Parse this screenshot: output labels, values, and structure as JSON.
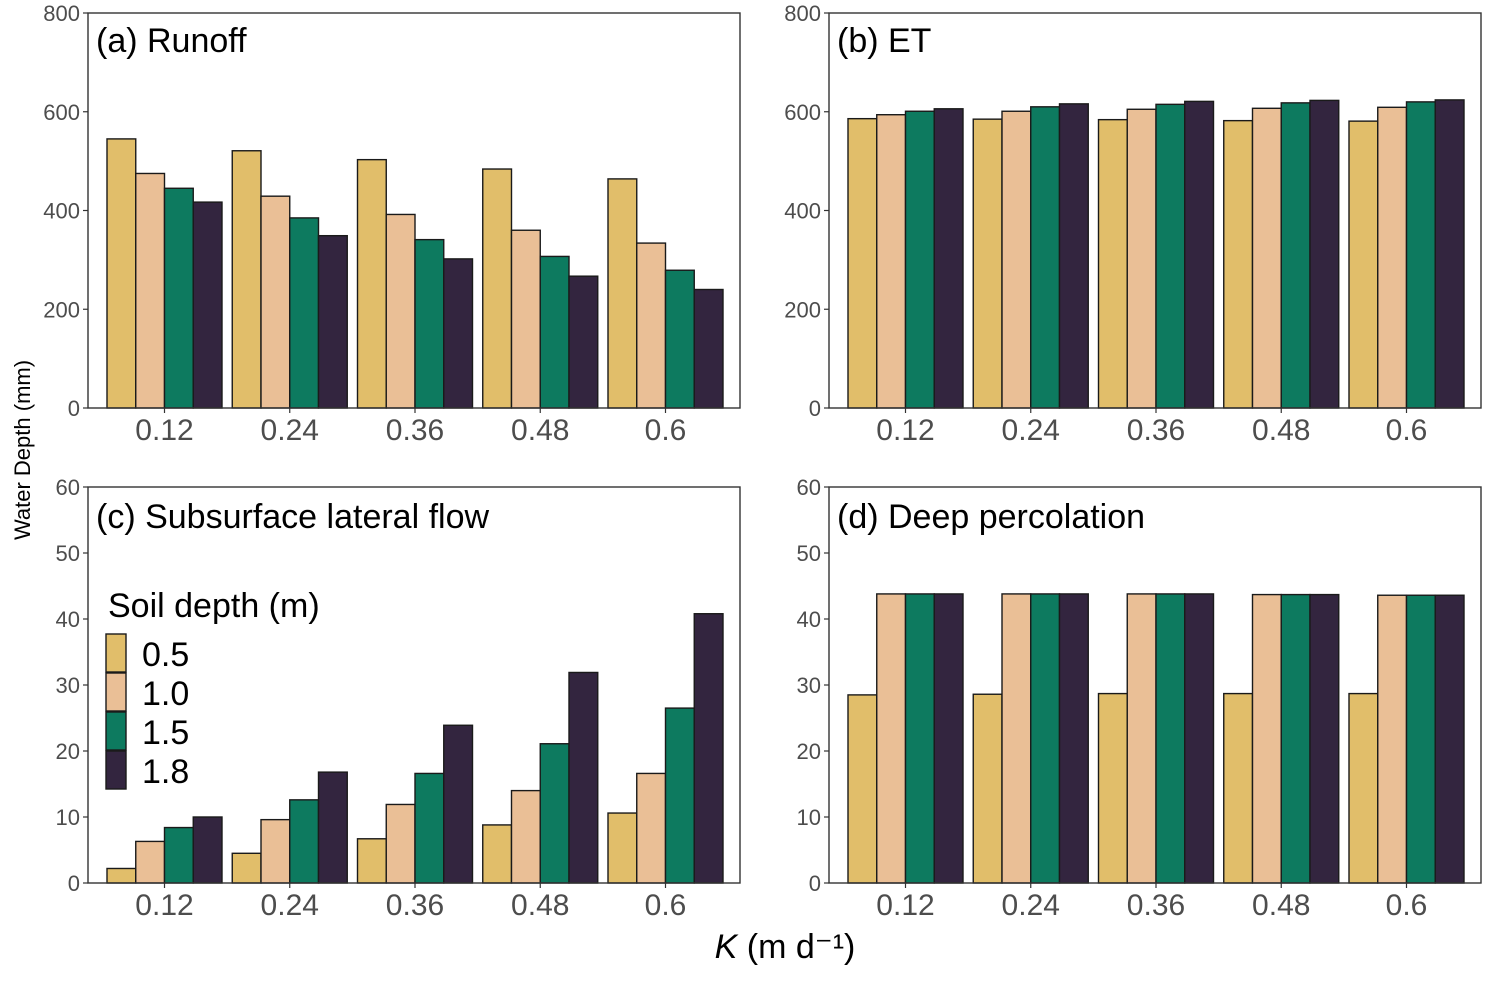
{
  "chart_data": [
    {
      "type": "bar",
      "title": "(a) Runoff",
      "categories": [
        "0.12",
        "0.24",
        "0.36",
        "0.48",
        "0.6"
      ],
      "ylim": [
        0,
        800
      ],
      "yticks": [
        "0",
        "200",
        "400",
        "600",
        "800"
      ],
      "series": [
        {
          "name": "0.5",
          "values": [
            545,
            521,
            503,
            484,
            464
          ]
        },
        {
          "name": "1.0",
          "values": [
            475,
            429,
            392,
            360,
            334
          ]
        },
        {
          "name": "1.5",
          "values": [
            445,
            385,
            341,
            307,
            279
          ]
        },
        {
          "name": "1.8",
          "values": [
            417,
            349,
            302,
            267,
            240
          ]
        }
      ]
    },
    {
      "type": "bar",
      "title": "(b) ET",
      "categories": [
        "0.12",
        "0.24",
        "0.36",
        "0.48",
        "0.6"
      ],
      "ylim": [
        0,
        800
      ],
      "yticks": [
        "0",
        "200",
        "400",
        "600",
        "800"
      ],
      "series": [
        {
          "name": "0.5",
          "values": [
            586,
            585,
            584,
            582,
            581
          ]
        },
        {
          "name": "1.0",
          "values": [
            594,
            601,
            605,
            607,
            609
          ]
        },
        {
          "name": "1.5",
          "values": [
            601,
            610,
            615,
            618,
            620
          ]
        },
        {
          "name": "1.8",
          "values": [
            606,
            616,
            621,
            623,
            624
          ]
        }
      ]
    },
    {
      "type": "bar",
      "title": "(c) Subsurface lateral flow",
      "categories": [
        "0.12",
        "0.24",
        "0.36",
        "0.48",
        "0.6"
      ],
      "ylim": [
        0,
        60
      ],
      "yticks": [
        "0",
        "10",
        "20",
        "30",
        "40",
        "50",
        "60"
      ],
      "series": [
        {
          "name": "0.5",
          "values": [
            2.2,
            4.5,
            6.7,
            8.8,
            10.6
          ]
        },
        {
          "name": "1.0",
          "values": [
            6.3,
            9.6,
            11.9,
            14.0,
            16.6
          ]
        },
        {
          "name": "1.5",
          "values": [
            8.4,
            12.6,
            16.6,
            21.1,
            26.5
          ]
        },
        {
          "name": "1.8",
          "values": [
            10.0,
            16.8,
            23.9,
            31.9,
            40.8
          ]
        }
      ]
    },
    {
      "type": "bar",
      "title": "(d) Deep percolation",
      "categories": [
        "0.12",
        "0.24",
        "0.36",
        "0.48",
        "0.6"
      ],
      "ylim": [
        0,
        60
      ],
      "yticks": [
        "0",
        "10",
        "20",
        "30",
        "40",
        "50",
        "60"
      ],
      "series": [
        {
          "name": "0.5",
          "values": [
            28.5,
            28.6,
            28.7,
            28.7,
            28.7
          ]
        },
        {
          "name": "1.0",
          "values": [
            43.8,
            43.8,
            43.8,
            43.7,
            43.6
          ]
        },
        {
          "name": "1.5",
          "values": [
            43.8,
            43.8,
            43.8,
            43.7,
            43.6
          ]
        },
        {
          "name": "1.8",
          "values": [
            43.8,
            43.8,
            43.8,
            43.7,
            43.6
          ]
        }
      ]
    }
  ],
  "legend": {
    "title": "Soil depth (m)",
    "items": [
      "0.5",
      "1.0",
      "1.5",
      "1.8"
    ]
  },
  "colors": [
    "#E1BE6A",
    "#EABF96",
    "#0D7A5F",
    "#33253F"
  ],
  "y_axis_label": "Water Depth (mm)",
  "x_axis_label": {
    "symbol": "K",
    "unit": " (m d⁻¹)"
  }
}
